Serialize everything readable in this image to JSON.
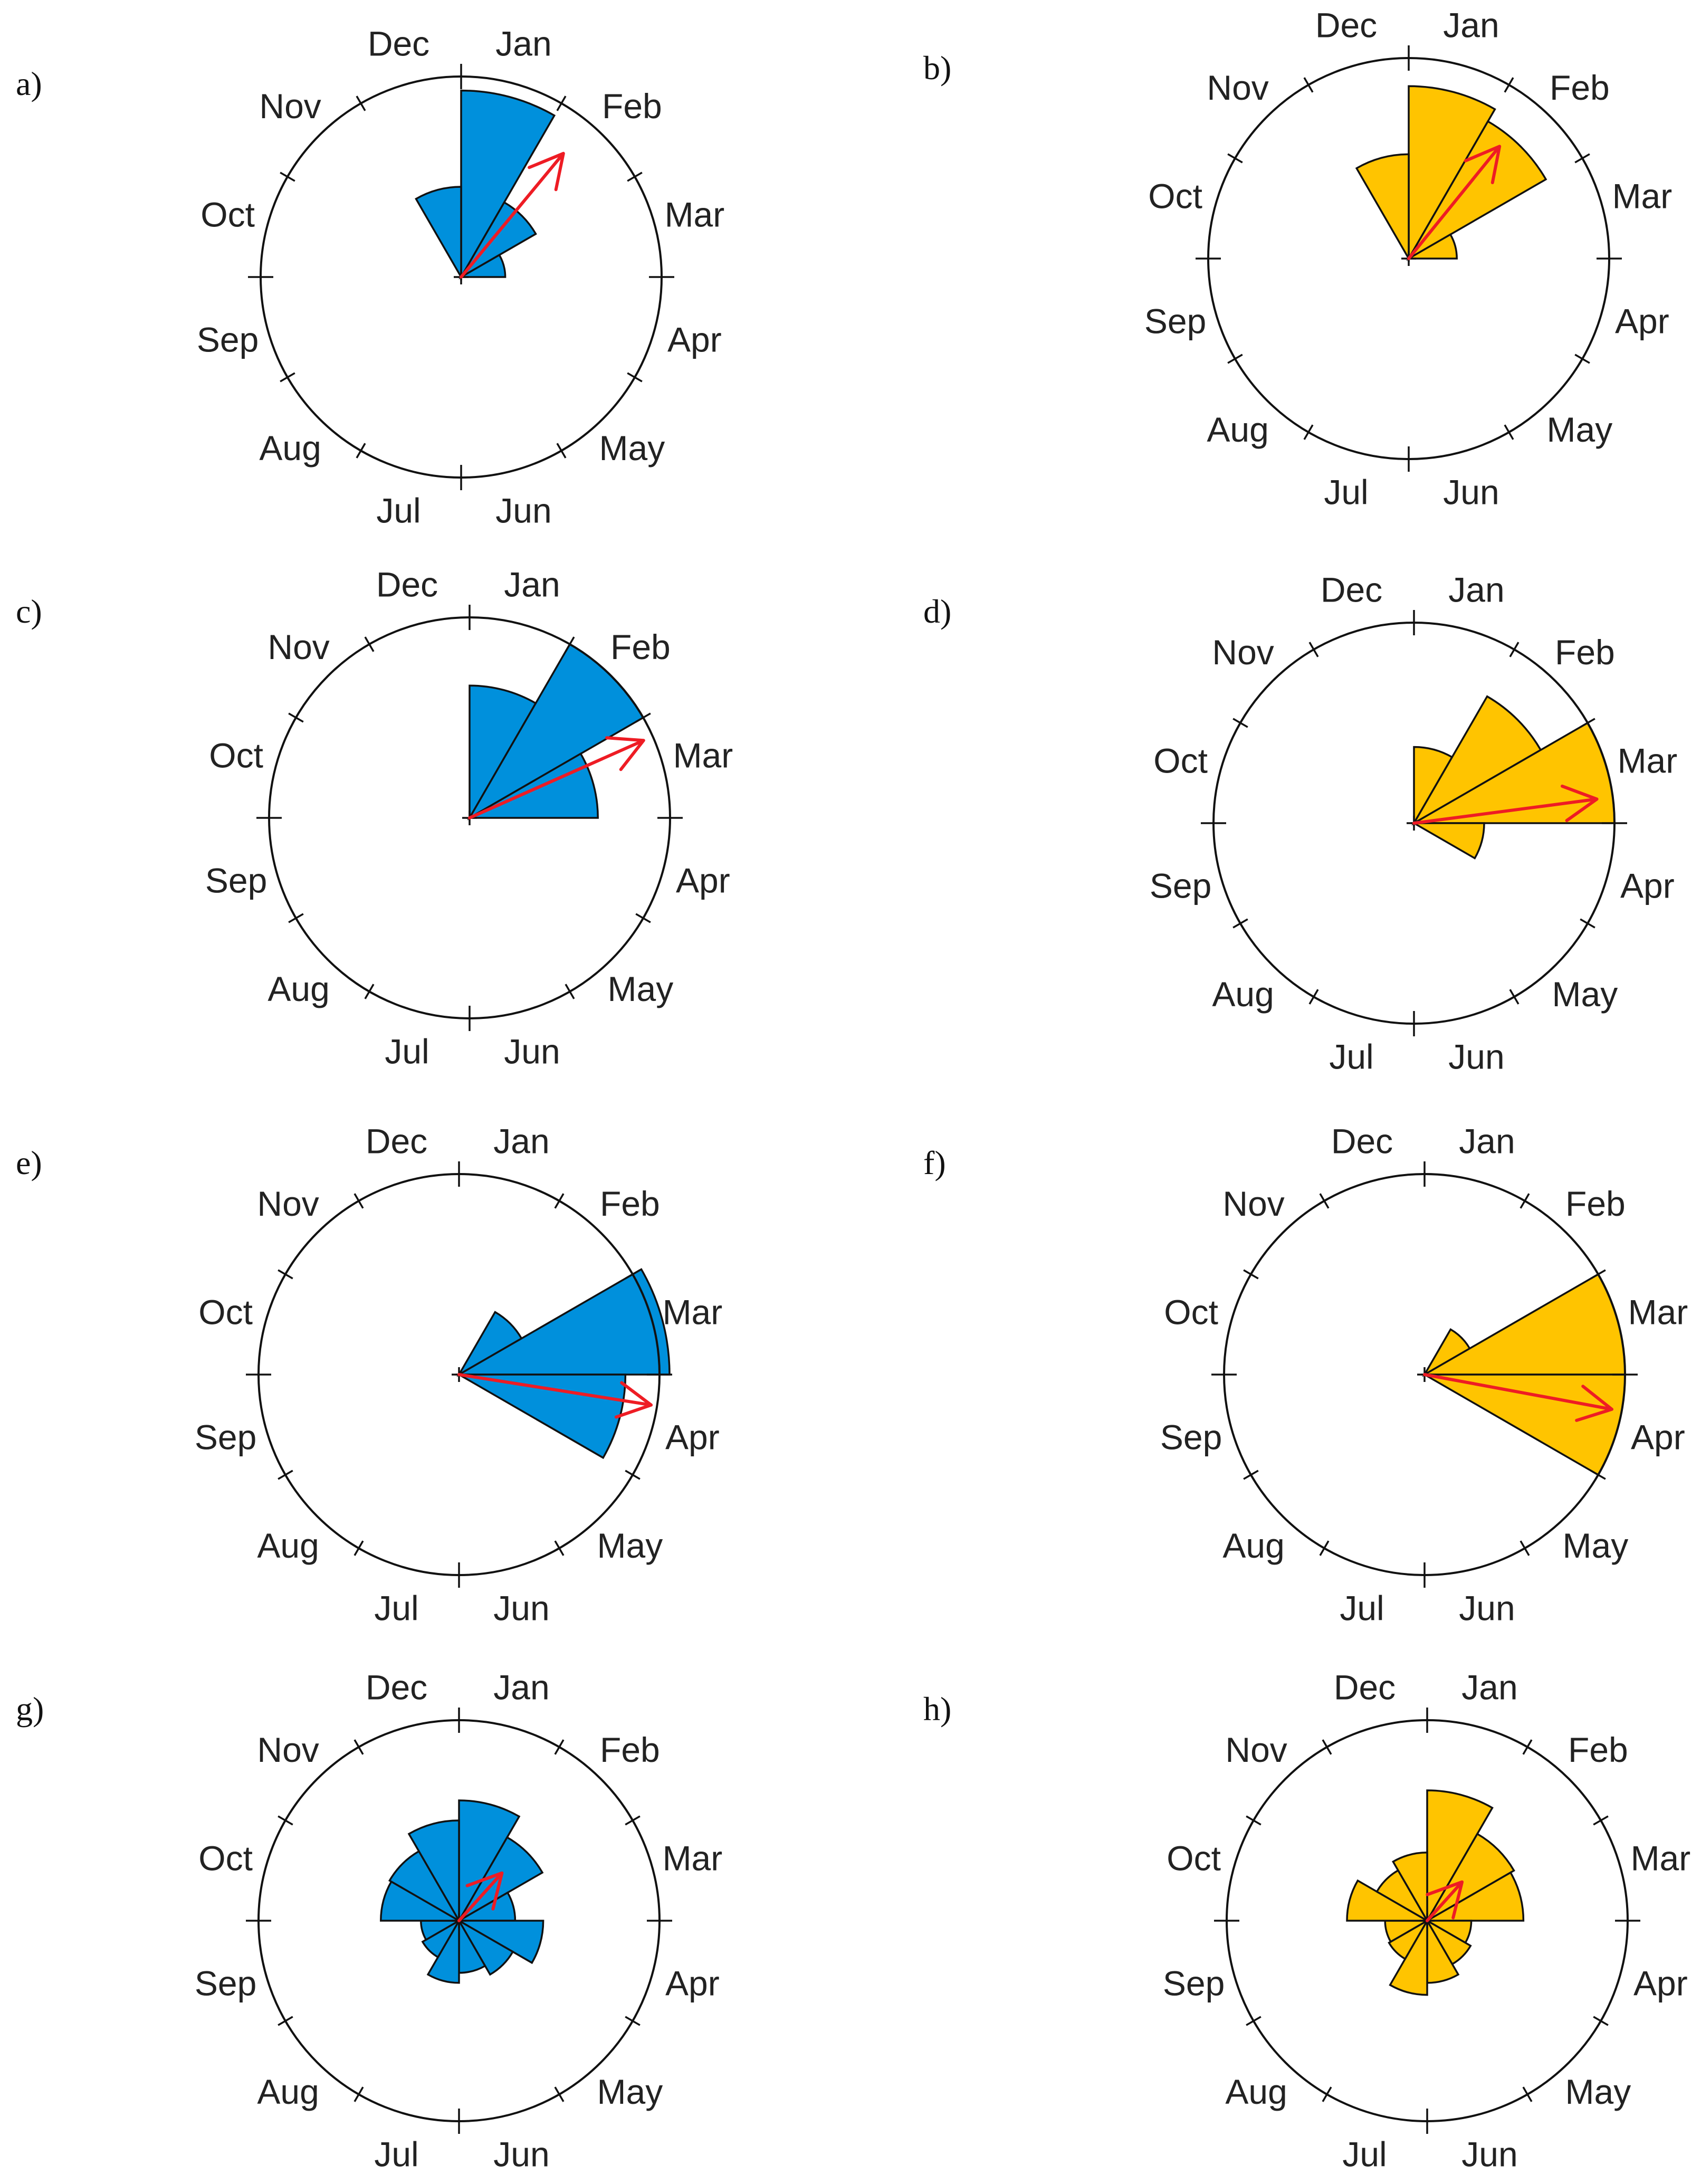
{
  "figure": {
    "month_labels": [
      "Jan",
      "Feb",
      "Mar",
      "Apr",
      "May",
      "Jun",
      "Jul",
      "Aug",
      "Sep",
      "Oct",
      "Nov",
      "Dec"
    ],
    "colors": {
      "blue": "#0090dc",
      "yellow": "#ffc400",
      "arrow": "#ee1c24",
      "outline": "#111111"
    }
  },
  "chart_data": [
    {
      "panel": "a)",
      "type": "rose",
      "color": "blue",
      "categories": [
        "Jan",
        "Feb",
        "Mar",
        "Apr",
        "May",
        "Jun",
        "Jul",
        "Aug",
        "Sep",
        "Oct",
        "Nov",
        "Dec"
      ],
      "values": [
        0.93,
        0.43,
        0.22,
        0,
        0,
        0,
        0,
        0,
        0,
        0,
        0,
        0.45
      ],
      "mean_direction_month": 1.32,
      "resultant_length": 0.8
    },
    {
      "panel": "b)",
      "type": "rose",
      "color": "yellow",
      "categories": [
        "Jan",
        "Feb",
        "Mar",
        "Apr",
        "May",
        "Jun",
        "Jul",
        "Aug",
        "Sep",
        "Oct",
        "Nov",
        "Dec"
      ],
      "values": [
        0.86,
        0.79,
        0.24,
        0,
        0,
        0,
        0,
        0,
        0,
        0,
        0,
        0.52
      ],
      "mean_direction_month": 1.3,
      "resultant_length": 0.72
    },
    {
      "panel": "c)",
      "type": "rose",
      "color": "blue",
      "categories": [
        "Jan",
        "Feb",
        "Mar",
        "Apr",
        "May",
        "Jun",
        "Jul",
        "Aug",
        "Sep",
        "Oct",
        "Nov",
        "Dec"
      ],
      "values": [
        0.66,
        1.0,
        0.64,
        0,
        0,
        0,
        0,
        0,
        0,
        0,
        0,
        0
      ],
      "mean_direction_month": 2.2,
      "resultant_length": 0.95
    },
    {
      "panel": "d)",
      "type": "rose",
      "color": "yellow",
      "categories": [
        "Jan",
        "Feb",
        "Mar",
        "Apr",
        "May",
        "Jun",
        "Jul",
        "Aug",
        "Sep",
        "Oct",
        "Nov",
        "Dec"
      ],
      "values": [
        0.38,
        0.73,
        1.0,
        0.35,
        0,
        0,
        0,
        0,
        0,
        0,
        0,
        0
      ],
      "mean_direction_month": 2.75,
      "resultant_length": 0.92
    },
    {
      "panel": "e)",
      "type": "rose",
      "color": "blue",
      "categories": [
        "Jan",
        "Feb",
        "Mar",
        "Apr",
        "May",
        "Jun",
        "Jul",
        "Aug",
        "Sep",
        "Oct",
        "Nov",
        "Dec"
      ],
      "values": [
        0,
        0.36,
        1.05,
        0.83,
        0,
        0,
        0,
        0,
        0,
        0,
        0,
        0
      ],
      "mean_direction_month": 3.3,
      "resultant_length": 0.97
    },
    {
      "panel": "f)",
      "type": "rose",
      "color": "yellow",
      "categories": [
        "Jan",
        "Feb",
        "Mar",
        "Apr",
        "May",
        "Jun",
        "Jul",
        "Aug",
        "Sep",
        "Oct",
        "Nov",
        "Dec"
      ],
      "values": [
        0,
        0.26,
        1.0,
        1.0,
        0,
        0,
        0,
        0,
        0,
        0,
        0,
        0
      ],
      "mean_direction_month": 3.35,
      "resultant_length": 0.95
    },
    {
      "panel": "g)",
      "type": "rose",
      "color": "blue",
      "categories": [
        "Jan",
        "Feb",
        "Mar",
        "Apr",
        "May",
        "Jun",
        "Jul",
        "Aug",
        "Sep",
        "Oct",
        "Nov",
        "Dec"
      ],
      "values": [
        0.6,
        0.48,
        0.28,
        0.42,
        0.31,
        0.26,
        0.31,
        0.21,
        0.19,
        0.39,
        0.4,
        0.5
      ],
      "mean_direction_month": 1.4,
      "resultant_length": 0.32
    },
    {
      "panel": "h)",
      "type": "rose",
      "color": "yellow",
      "categories": [
        "Jan",
        "Feb",
        "Mar",
        "Apr",
        "May",
        "Jun",
        "Jul",
        "Aug",
        "Sep",
        "Oct",
        "Nov",
        "Dec"
      ],
      "values": [
        0.65,
        0.5,
        0.48,
        0.22,
        0.25,
        0.31,
        0.37,
        0.22,
        0.21,
        0.4,
        0.29,
        0.34
      ],
      "mean_direction_month": 1.4,
      "resultant_length": 0.26
    }
  ]
}
